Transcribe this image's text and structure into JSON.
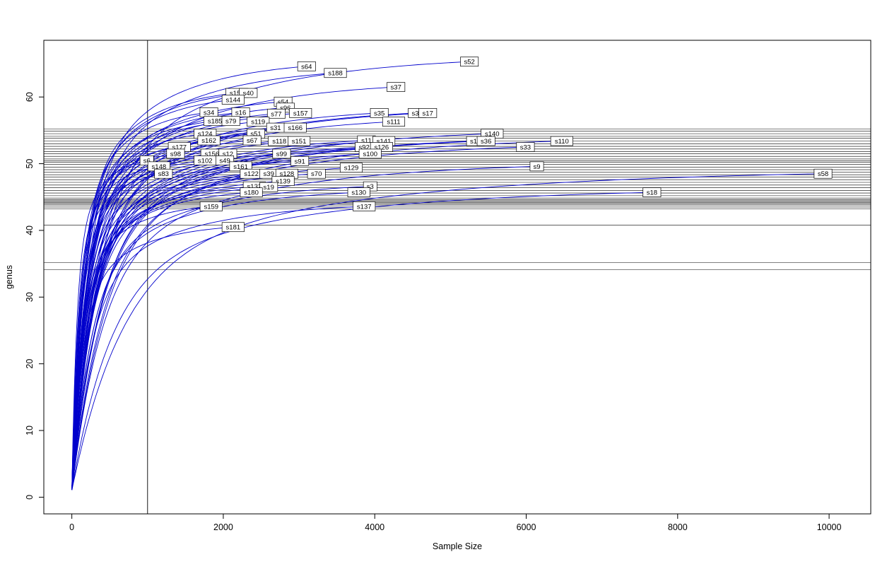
{
  "chart_data": {
    "type": "line",
    "title": "",
    "xlabel": "Sample Size",
    "ylabel": "genus",
    "xlim": [
      -370,
      10550
    ],
    "ylim": [
      -2.5,
      68.5
    ],
    "x_ticks": [
      0,
      2000,
      4000,
      6000,
      8000,
      10000
    ],
    "y_ticks": [
      0,
      10,
      20,
      30,
      40,
      50,
      60
    ],
    "grid": false,
    "legend": "none",
    "curve_color": "#0000CC",
    "reference_line_color": "#000000",
    "vline_x": 1000,
    "hlines": [
      55.2,
      54.9,
      54.5,
      54.1,
      53.8,
      53.4,
      53.0,
      52.6,
      52.2,
      51.8,
      51.5,
      51.1,
      50.7,
      50.45,
      50.2,
      49.9,
      49.5,
      49.1,
      48.7,
      48.35,
      48.0,
      47.6,
      47.2,
      46.8,
      46.4,
      46.0,
      45.6,
      45.2,
      44.85,
      44.6,
      44.45,
      44.3,
      44.15,
      44.0,
      43.8,
      43.5,
      43.2,
      40.8,
      35.2,
      34.1
    ],
    "series_note": "rarefaction curves; each starts near (1,1) and ends at (x_end, y_end) where its sample label box is drawn",
    "series": [
      {
        "label": "s52",
        "x_end": 5250,
        "y_end": 65.3
      },
      {
        "label": "s64",
        "x_end": 3100,
        "y_end": 64.6
      },
      {
        "label": "s188",
        "x_end": 3480,
        "y_end": 63.6
      },
      {
        "label": "s37",
        "x_end": 4280,
        "y_end": 61.5
      },
      {
        "label": "s155",
        "x_end": 2180,
        "y_end": 60.6
      },
      {
        "label": "s40",
        "x_end": 2330,
        "y_end": 60.6
      },
      {
        "label": "s144",
        "x_end": 2130,
        "y_end": 59.6
      },
      {
        "label": "s54",
        "x_end": 2790,
        "y_end": 59.3
      },
      {
        "label": "s96",
        "x_end": 2820,
        "y_end": 58.4
      },
      {
        "label": "s34",
        "x_end": 1810,
        "y_end": 57.7
      },
      {
        "label": "s16",
        "x_end": 2230,
        "y_end": 57.7
      },
      {
        "label": "s77",
        "x_end": 2700,
        "y_end": 57.5
      },
      {
        "label": "s157",
        "x_end": 3020,
        "y_end": 57.6
      },
      {
        "label": "s35",
        "x_end": 4060,
        "y_end": 57.6
      },
      {
        "label": "s30",
        "x_end": 4560,
        "y_end": 57.6
      },
      {
        "label": "s17",
        "x_end": 4700,
        "y_end": 57.6
      },
      {
        "label": "s185",
        "x_end": 1890,
        "y_end": 56.4
      },
      {
        "label": "s79",
        "x_end": 2100,
        "y_end": 56.4
      },
      {
        "label": "s119",
        "x_end": 2460,
        "y_end": 56.3
      },
      {
        "label": "s111",
        "x_end": 4250,
        "y_end": 56.3
      },
      {
        "label": "s31",
        "x_end": 2690,
        "y_end": 55.4
      },
      {
        "label": "s166",
        "x_end": 2950,
        "y_end": 55.4
      },
      {
        "label": "s124",
        "x_end": 1760,
        "y_end": 54.5
      },
      {
        "label": "s51",
        "x_end": 2430,
        "y_end": 54.5
      },
      {
        "label": "s140",
        "x_end": 5550,
        "y_end": 54.5
      },
      {
        "label": "s162",
        "x_end": 1810,
        "y_end": 53.5
      },
      {
        "label": "s67",
        "x_end": 2380,
        "y_end": 53.5
      },
      {
        "label": "s118",
        "x_end": 2740,
        "y_end": 53.4
      },
      {
        "label": "s151",
        "x_end": 3000,
        "y_end": 53.4
      },
      {
        "label": "s11",
        "x_end": 3890,
        "y_end": 53.5
      },
      {
        "label": "s141",
        "x_end": 4120,
        "y_end": 53.4
      },
      {
        "label": "s13",
        "x_end": 5330,
        "y_end": 53.4
      },
      {
        "label": "s36",
        "x_end": 5470,
        "y_end": 53.4
      },
      {
        "label": "s110",
        "x_end": 6470,
        "y_end": 53.4
      },
      {
        "label": "s177",
        "x_end": 1420,
        "y_end": 52.5
      },
      {
        "label": "s92",
        "x_end": 3860,
        "y_end": 52.5
      },
      {
        "label": "s126",
        "x_end": 4090,
        "y_end": 52.5
      },
      {
        "label": "s33",
        "x_end": 5990,
        "y_end": 52.5
      },
      {
        "label": "s98",
        "x_end": 1370,
        "y_end": 51.5
      },
      {
        "label": "s156",
        "x_end": 1850,
        "y_end": 51.5
      },
      {
        "label": "s12",
        "x_end": 2060,
        "y_end": 51.5
      },
      {
        "label": "s99",
        "x_end": 2770,
        "y_end": 51.5
      },
      {
        "label": "s100",
        "x_end": 3940,
        "y_end": 51.5
      },
      {
        "label": "s6",
        "x_end": 990,
        "y_end": 50.5
      },
      {
        "label": "s102",
        "x_end": 1760,
        "y_end": 50.5
      },
      {
        "label": "s49",
        "x_end": 2020,
        "y_end": 50.5
      },
      {
        "label": "s91",
        "x_end": 3010,
        "y_end": 50.4
      },
      {
        "label": "s148",
        "x_end": 1150,
        "y_end": 49.6
      },
      {
        "label": "s161",
        "x_end": 2230,
        "y_end": 49.6
      },
      {
        "label": "s129",
        "x_end": 3690,
        "y_end": 49.4
      },
      {
        "label": "s9",
        "x_end": 6140,
        "y_end": 49.6
      },
      {
        "label": "s83",
        "x_end": 1210,
        "y_end": 48.5
      },
      {
        "label": "s122",
        "x_end": 2370,
        "y_end": 48.5
      },
      {
        "label": "s39",
        "x_end": 2600,
        "y_end": 48.5
      },
      {
        "label": "s128",
        "x_end": 2840,
        "y_end": 48.5
      },
      {
        "label": "s70",
        "x_end": 3230,
        "y_end": 48.5
      },
      {
        "label": "s58",
        "x_end": 9920,
        "y_end": 48.5
      },
      {
        "label": "s139",
        "x_end": 2790,
        "y_end": 47.4
      },
      {
        "label": "s132",
        "x_end": 2410,
        "y_end": 46.6
      },
      {
        "label": "s19",
        "x_end": 2600,
        "y_end": 46.5
      },
      {
        "label": "s3",
        "x_end": 3940,
        "y_end": 46.6
      },
      {
        "label": "s180",
        "x_end": 2370,
        "y_end": 45.7
      },
      {
        "label": "s130",
        "x_end": 3790,
        "y_end": 45.7
      },
      {
        "label": "s18",
        "x_end": 7660,
        "y_end": 45.7
      },
      {
        "label": "s159",
        "x_end": 1840,
        "y_end": 43.6
      },
      {
        "label": "s137",
        "x_end": 3860,
        "y_end": 43.6
      },
      {
        "label": "s181",
        "x_end": 2130,
        "y_end": 40.5
      }
    ]
  }
}
